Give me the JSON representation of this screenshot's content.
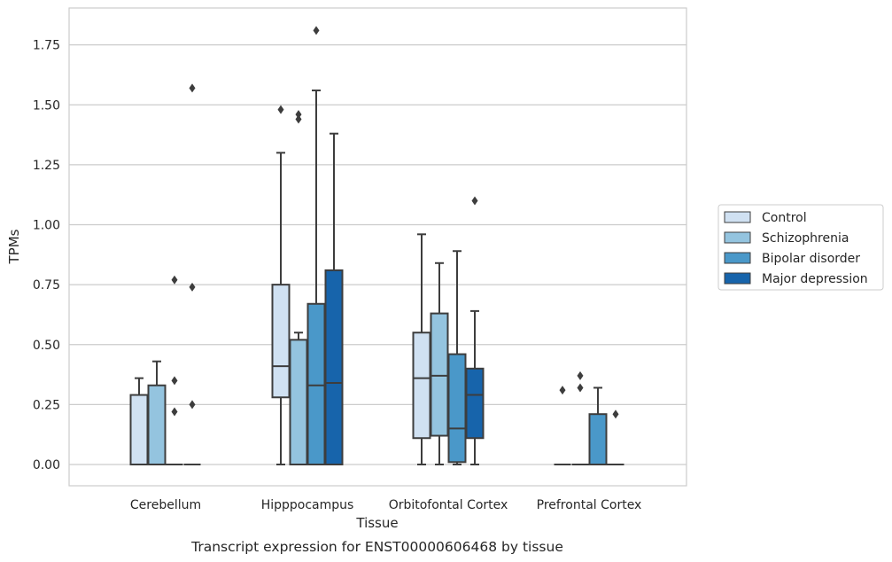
{
  "caption": "Transcript expression for ENST00000606468 by tissue",
  "chart_data": {
    "type": "boxplot",
    "xlabel": "Tissue",
    "ylabel": "TPMs",
    "ylim": [
      -0.09,
      1.9
    ],
    "yticks": [
      "0.00",
      "0.25",
      "0.50",
      "0.75",
      "1.00",
      "1.25",
      "1.50",
      "1.75"
    ],
    "categories": [
      "Cerebellum",
      "Hipppocampus",
      "Orbitofontal Cortex",
      "Prefrontal Cortex"
    ],
    "grid": true,
    "legend_position": "right",
    "series": [
      {
        "name": "Control",
        "color": "#d0e1f2",
        "boxes": [
          {
            "whislo": 0,
            "q1": 0,
            "med": 0,
            "q3": 0.29,
            "whishi": 0.36,
            "fliers": []
          },
          {
            "whislo": 0,
            "q1": 0.28,
            "med": 0.41,
            "q3": 0.75,
            "whishi": 1.3,
            "fliers": [
              1.48
            ]
          },
          {
            "whislo": 0,
            "q1": 0.11,
            "med": 0.36,
            "q3": 0.55,
            "whishi": 0.96,
            "fliers": []
          },
          {
            "whislo": 0,
            "q1": 0,
            "med": 0,
            "q3": 0,
            "whishi": 0,
            "fliers": [
              0.31
            ]
          }
        ]
      },
      {
        "name": "Schizophrenia",
        "color": "#94c4df",
        "boxes": [
          {
            "whislo": 0,
            "q1": 0,
            "med": 0,
            "q3": 0.33,
            "whishi": 0.43,
            "fliers": []
          },
          {
            "whislo": 0,
            "q1": 0,
            "med": 0,
            "q3": 0.52,
            "whishi": 0.55,
            "fliers": [
              1.44,
              1.46
            ]
          },
          {
            "whislo": 0,
            "q1": 0.12,
            "med": 0.37,
            "q3": 0.63,
            "whishi": 0.84,
            "fliers": []
          },
          {
            "whislo": 0,
            "q1": 0,
            "med": 0,
            "q3": 0,
            "whishi": 0,
            "fliers": [
              0.32,
              0.37
            ]
          }
        ]
      },
      {
        "name": "Bipolar disorder",
        "color": "#4a98c9",
        "boxes": [
          {
            "whislo": 0,
            "q1": 0,
            "med": 0,
            "q3": 0,
            "whishi": 0,
            "fliers": [
              0.22,
              0.35,
              0.77
            ]
          },
          {
            "whislo": 0,
            "q1": 0,
            "med": 0.33,
            "q3": 0.67,
            "whishi": 1.56,
            "fliers": [
              1.81
            ]
          },
          {
            "whislo": 0,
            "q1": 0.01,
            "med": 0.15,
            "q3": 0.46,
            "whishi": 0.89,
            "fliers": []
          },
          {
            "whislo": 0,
            "q1": 0,
            "med": 0,
            "q3": 0.21,
            "whishi": 0.32,
            "fliers": []
          }
        ]
      },
      {
        "name": "Major depression",
        "color": "#1764ab",
        "boxes": [
          {
            "whislo": 0,
            "q1": 0,
            "med": 0,
            "q3": 0,
            "whishi": 0,
            "fliers": [
              0.25,
              0.74,
              1.57
            ]
          },
          {
            "whislo": 0,
            "q1": 0,
            "med": 0.34,
            "q3": 0.81,
            "whishi": 1.38,
            "fliers": []
          },
          {
            "whislo": 0,
            "q1": 0.11,
            "med": 0.29,
            "q3": 0.4,
            "whishi": 0.64,
            "fliers": [
              1.1
            ]
          },
          {
            "whislo": 0,
            "q1": 0,
            "med": 0,
            "q3": 0,
            "whishi": 0,
            "fliers": [
              0.21
            ]
          }
        ]
      }
    ]
  }
}
